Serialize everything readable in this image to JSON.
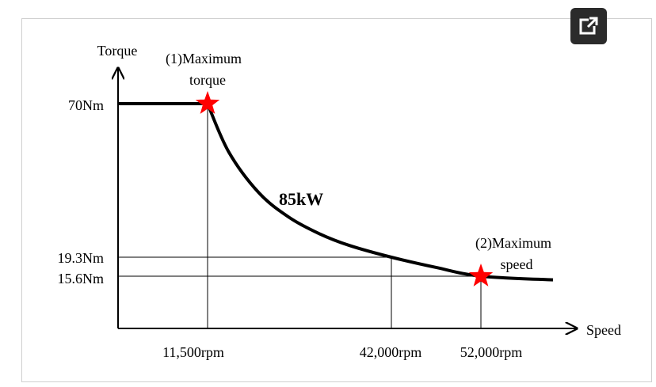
{
  "ui": {
    "expand_icon": "open-in-new-icon",
    "expand_bg": "#2b2b2b"
  },
  "chart_data": {
    "type": "line",
    "title": "",
    "xlabel": "Speed",
    "ylabel": "Torque",
    "power_label": "85kW",
    "x_ticks": [
      "11,500rpm",
      "42,000rpm",
      "52,000rpm"
    ],
    "y_ticks": [
      "70Nm",
      "19.3Nm",
      "15.6Nm"
    ],
    "series": [
      {
        "x": [
          0,
          11500,
          15000,
          20000,
          25000,
          30000,
          35000,
          42000,
          47000,
          52000,
          56000
        ],
        "y": [
          70,
          70,
          54.1,
          40.6,
          32.5,
          27.1,
          23.2,
          19.3,
          17.3,
          15.6,
          14.5
        ]
      }
    ],
    "annotations": [
      {
        "label_line1": "(1)Maximum",
        "label_line2": "torque",
        "x": 11500,
        "y": 70,
        "marker": "star",
        "color": "#ff0000"
      },
      {
        "label_line1": "(2)Maximum",
        "label_line2": "speed",
        "x": 52000,
        "y": 15.6,
        "marker": "star",
        "color": "#ff0000"
      }
    ],
    "line_color": "#000000",
    "guide_lines": true,
    "grid": false
  }
}
